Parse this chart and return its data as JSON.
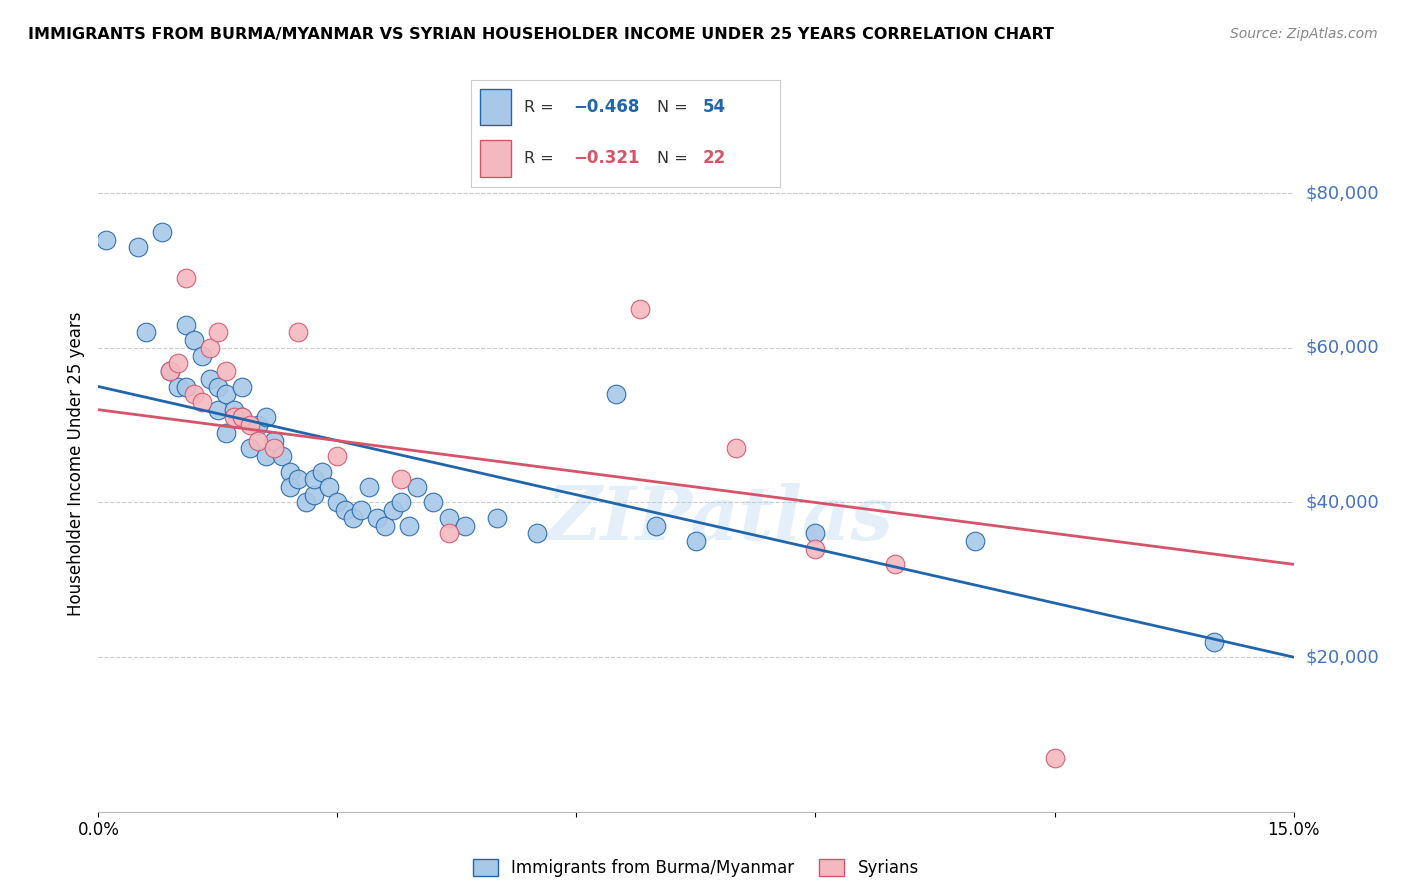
{
  "title": "IMMIGRANTS FROM BURMA/MYANMAR VS SYRIAN HOUSEHOLDER INCOME UNDER 25 YEARS CORRELATION CHART",
  "source": "Source: ZipAtlas.com",
  "ylabel": "Householder Income Under 25 years",
  "xlim": [
    0.0,
    0.15
  ],
  "ylim": [
    0,
    90000
  ],
  "xticks": [
    0.0,
    0.03,
    0.06,
    0.09,
    0.12,
    0.15
  ],
  "xticklabels": [
    "0.0%",
    "",
    "",
    "",
    "",
    "15.0%"
  ],
  "yticks_right": [
    20000,
    40000,
    60000,
    80000
  ],
  "ytick_labels_right": [
    "$20,000",
    "$40,000",
    "$60,000",
    "$80,000"
  ],
  "color_blue": "#a8c8e8",
  "color_pink": "#f4b8c0",
  "color_blue_line": "#2166ac",
  "color_pink_line": "#d6546a",
  "color_label_right": "#4472c4",
  "watermark": "ZIPatlas",
  "legend_label1": "Immigrants from Burma/Myanmar",
  "legend_label2": "Syrians",
  "blue_x": [
    0.001,
    0.005,
    0.006,
    0.008,
    0.009,
    0.01,
    0.011,
    0.011,
    0.012,
    0.013,
    0.014,
    0.015,
    0.015,
    0.016,
    0.016,
    0.017,
    0.018,
    0.018,
    0.019,
    0.02,
    0.021,
    0.021,
    0.022,
    0.023,
    0.024,
    0.024,
    0.025,
    0.026,
    0.027,
    0.027,
    0.028,
    0.029,
    0.03,
    0.031,
    0.032,
    0.033,
    0.034,
    0.035,
    0.036,
    0.037,
    0.038,
    0.039,
    0.04,
    0.042,
    0.044,
    0.046,
    0.05,
    0.055,
    0.065,
    0.07,
    0.075,
    0.09,
    0.11,
    0.14
  ],
  "blue_y": [
    74000,
    73000,
    62000,
    75000,
    57000,
    55000,
    63000,
    55000,
    61000,
    59000,
    56000,
    55000,
    52000,
    49000,
    54000,
    52000,
    51000,
    55000,
    47000,
    50000,
    51000,
    46000,
    48000,
    46000,
    44000,
    42000,
    43000,
    40000,
    41000,
    43000,
    44000,
    42000,
    40000,
    39000,
    38000,
    39000,
    42000,
    38000,
    37000,
    39000,
    40000,
    37000,
    42000,
    40000,
    38000,
    37000,
    38000,
    36000,
    54000,
    37000,
    35000,
    36000,
    35000,
    22000
  ],
  "pink_x": [
    0.009,
    0.01,
    0.011,
    0.012,
    0.013,
    0.014,
    0.015,
    0.016,
    0.017,
    0.018,
    0.019,
    0.02,
    0.022,
    0.025,
    0.03,
    0.038,
    0.044,
    0.068,
    0.08,
    0.09,
    0.1,
    0.12
  ],
  "pink_y": [
    57000,
    58000,
    69000,
    54000,
    53000,
    60000,
    62000,
    57000,
    51000,
    51000,
    50000,
    48000,
    47000,
    62000,
    46000,
    43000,
    36000,
    65000,
    47000,
    34000,
    32000,
    7000
  ],
  "blue_line_x": [
    0.0,
    0.15
  ],
  "blue_line_y": [
    55000,
    20000
  ],
  "pink_line_x": [
    0.0,
    0.15
  ],
  "pink_line_y": [
    52000,
    32000
  ]
}
